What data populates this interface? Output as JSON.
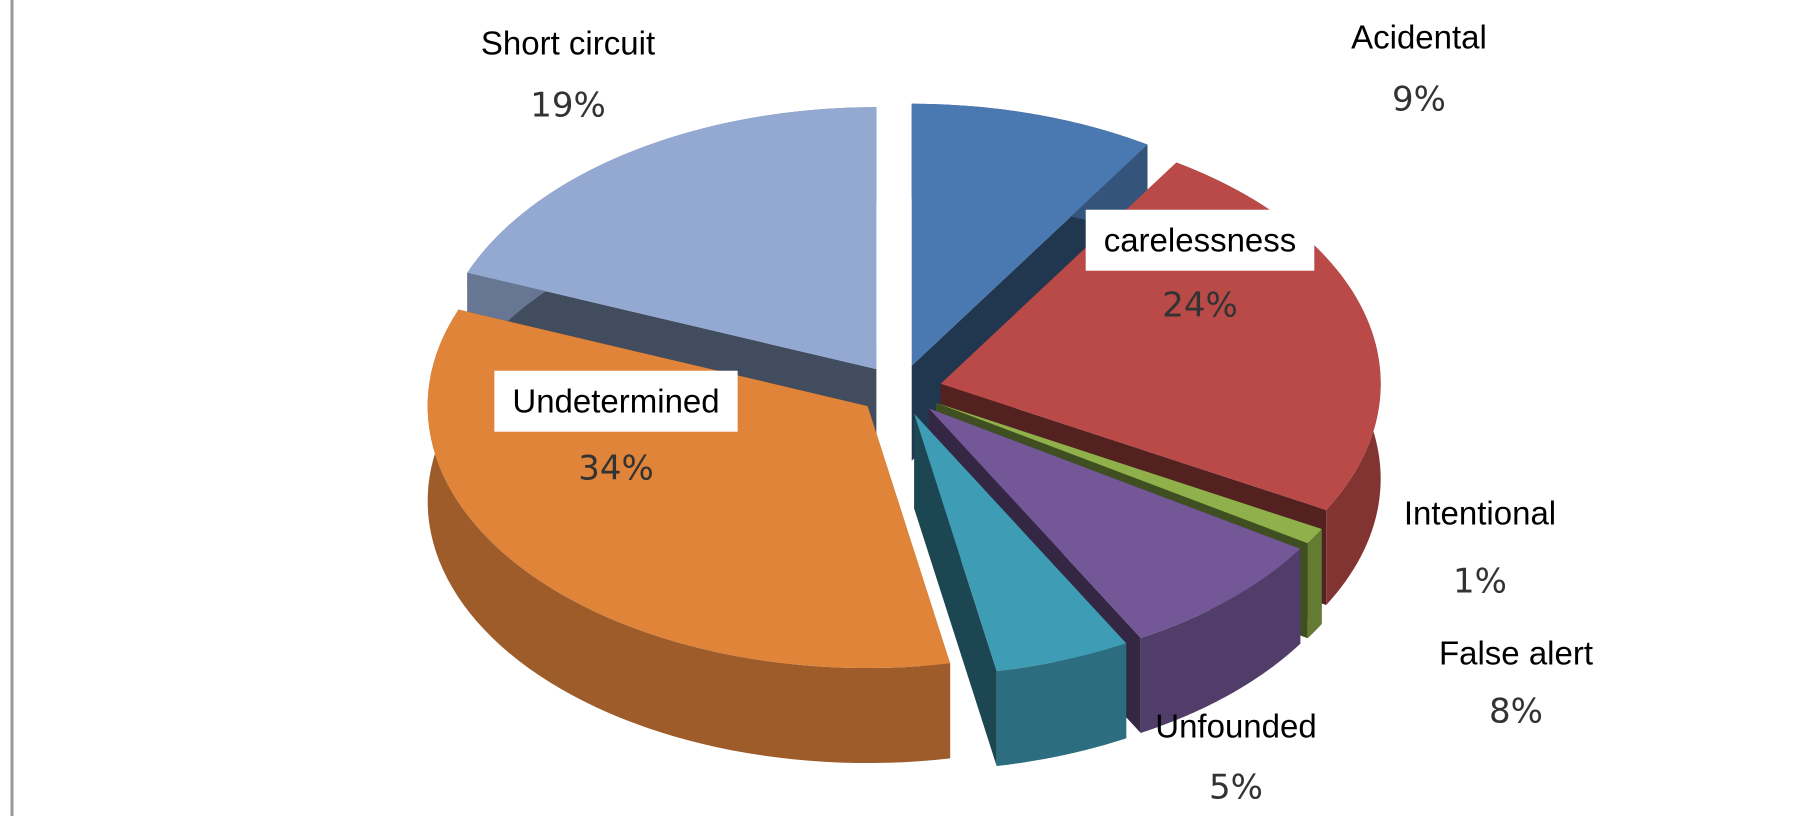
{
  "chart_data": {
    "type": "pie",
    "categories": [
      "Acidental",
      "carelessness",
      "Intentional",
      "False alert",
      "Unfounded",
      "Undetermined",
      "Short circuit"
    ],
    "values": [
      9,
      24,
      1,
      8,
      5,
      34,
      19
    ],
    "value_labels": [
      "9%",
      "24%",
      "1%",
      "8%",
      "5%",
      "34%",
      "19%"
    ],
    "colors": [
      "#4a78b0",
      "#b94a48",
      "#8fb04a",
      "#735796",
      "#3f9cb5",
      "#e0843a",
      "#93a9d2"
    ]
  }
}
